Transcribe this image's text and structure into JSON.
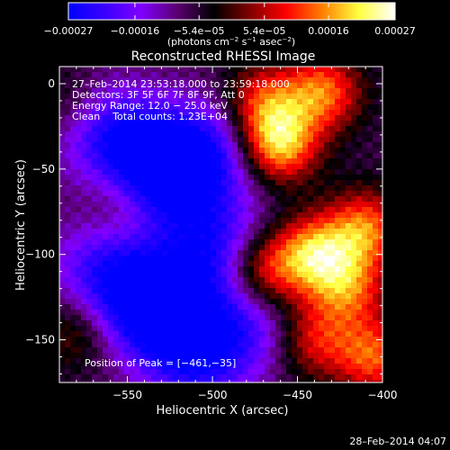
{
  "chart_data": {
    "type": "heatmap",
    "title": "Reconstructed RHESSI Image",
    "xlabel": "Heliocentric X (arcsec)",
    "ylabel": "Heliocentric Y (arcsec)",
    "xlim": [
      -590,
      -400
    ],
    "ylim": [
      -175,
      10
    ],
    "x_ticks": [
      -550,
      -500,
      -450,
      -400
    ],
    "x_tick_labels": [
      "−550",
      "−500",
      "−450",
      "−400"
    ],
    "y_ticks": [
      0,
      -50,
      -100,
      -150
    ],
    "y_tick_labels": [
      "0",
      "−50",
      "−100",
      "−150"
    ],
    "colorbar": {
      "range": [
        -0.00027,
        0.00027
      ],
      "ticks": [
        -0.00027,
        -0.00016,
        -5.4e-05,
        5.4e-05,
        0.00016,
        0.00027
      ],
      "tick_labels": [
        "−0.00027",
        "−0.00016",
        "−5.4e−05",
        "5.4e−05",
        "0.00016",
        "0.00027"
      ],
      "units_parts": [
        "(photons cm",
        "−2",
        " s",
        "−1",
        " asec",
        "−2",
        ")"
      ],
      "colors": [
        "#0000ff",
        "#3a00ff",
        "#8000ff",
        "#5a0070",
        "#000000",
        "#800000",
        "#ff0000",
        "#ff8000",
        "#ffff40",
        "#ffffff"
      ]
    },
    "sources": [
      {
        "x": -461,
        "y": -35,
        "intensity": 1.0
      },
      {
        "x": -435,
        "y": -5,
        "intensity": 0.75
      },
      {
        "x": -470,
        "y": -10,
        "intensity": 0.6
      },
      {
        "x": -440,
        "y": -100,
        "intensity": 0.9
      },
      {
        "x": -410,
        "y": -85,
        "intensity": 0.75
      },
      {
        "x": -470,
        "y": -110,
        "intensity": 0.7
      },
      {
        "x": -420,
        "y": -120,
        "intensity": 0.65
      },
      {
        "x": -405,
        "y": -160,
        "intensity": 0.7
      },
      {
        "x": -440,
        "y": -150,
        "intensity": 0.55
      },
      {
        "x": -580,
        "y": -145,
        "intensity": 0.35
      },
      {
        "x": -555,
        "y": -70,
        "intensity": 0.25
      },
      {
        "x": -585,
        "y": -10,
        "intensity": 0.2
      }
    ],
    "minima": [
      {
        "x": -530,
        "y": -50,
        "intensity": -0.9
      },
      {
        "x": -535,
        "y": -130,
        "intensity": -0.9
      },
      {
        "x": -500,
        "y": -95,
        "intensity": -0.6
      },
      {
        "x": -560,
        "y": -30,
        "intensity": -0.55
      },
      {
        "x": -510,
        "y": -160,
        "intensity": -0.6
      },
      {
        "x": -480,
        "y": -140,
        "intensity": -0.45
      },
      {
        "x": -565,
        "y": -110,
        "intensity": -0.5
      },
      {
        "x": -500,
        "y": -40,
        "intensity": -0.5
      }
    ],
    "annotations": [
      "27–Feb–2014 23:53:18.000 to 23:59:18.000",
      "Detectors: 3F 5F 6F 7F 8F 9F, Att 0",
      "Energy Range: 12.0 − 25.0 keV",
      "Clean    Total counts: 1.23E+04"
    ],
    "peak_label": "Position of Peak = [−461,−35]",
    "timestamp": "28–Feb–2014 04:07"
  }
}
